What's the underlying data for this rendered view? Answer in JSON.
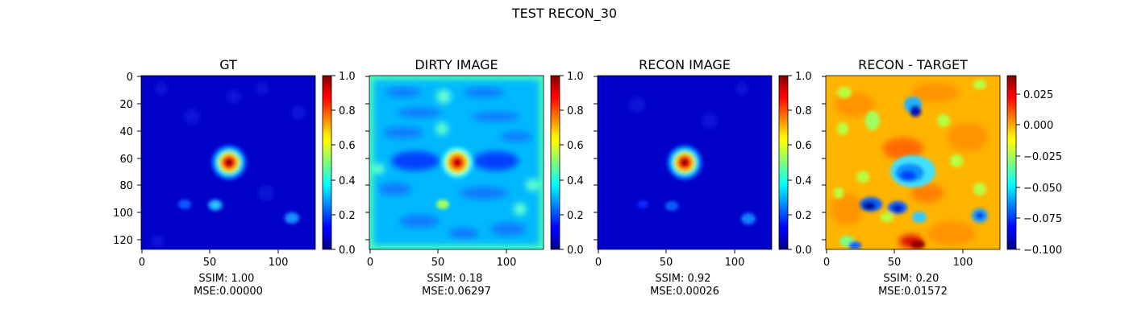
{
  "figure": {
    "suptitle": "TEST RECON_30"
  },
  "chart_data": [
    {
      "type": "heatmap",
      "title": "GT",
      "xlabel": "SSIM: 1.00\nMSE:0.00000",
      "x_ticks": [
        "0",
        "50",
        "100"
      ],
      "y_ticks": [
        "0",
        "20",
        "40",
        "60",
        "80",
        "100",
        "120"
      ],
      "x_range": [
        0,
        128
      ],
      "y_range": [
        0,
        128
      ],
      "colormap": "jet",
      "colorbar_range": [
        0,
        1
      ],
      "colorbar_ticks": [
        "0.0",
        "0.2",
        "0.4",
        "0.6",
        "0.8",
        "1.0"
      ]
    },
    {
      "type": "heatmap",
      "title": "DIRTY IMAGE",
      "xlabel": "SSIM: 0.18\nMSE:0.06297",
      "x_ticks": [
        "0",
        "50",
        "100"
      ],
      "y_ticks": [],
      "x_range": [
        0,
        128
      ],
      "y_range": [
        0,
        128
      ],
      "colormap": "jet",
      "colorbar_range": [
        0,
        1
      ],
      "colorbar_ticks": [
        "0.0",
        "0.2",
        "0.4",
        "0.6",
        "0.8",
        "1.0"
      ]
    },
    {
      "type": "heatmap",
      "title": "RECON IMAGE",
      "xlabel": "SSIM: 0.92\nMSE:0.00026",
      "x_ticks": [
        "0",
        "50",
        "100"
      ],
      "y_ticks": [],
      "x_range": [
        0,
        128
      ],
      "y_range": [
        0,
        128
      ],
      "colormap": "jet",
      "colorbar_range": [
        0,
        1
      ],
      "colorbar_ticks": [
        "0.0",
        "0.2",
        "0.4",
        "0.6",
        "0.8",
        "1.0"
      ]
    },
    {
      "type": "heatmap",
      "title": "RECON - TARGET",
      "xlabel": "SSIM: 0.20\nMSE:0.01572",
      "x_ticks": [
        "0",
        "50",
        "100"
      ],
      "y_ticks": [],
      "x_range": [
        0,
        128
      ],
      "y_range": [
        0,
        128
      ],
      "colormap": "jet",
      "colorbar_range": [
        -0.1,
        0.04
      ],
      "colorbar_ticks": [
        "0.025",
        "0.000",
        "−0.025",
        "−0.050",
        "−0.075",
        "−0.100"
      ]
    }
  ]
}
